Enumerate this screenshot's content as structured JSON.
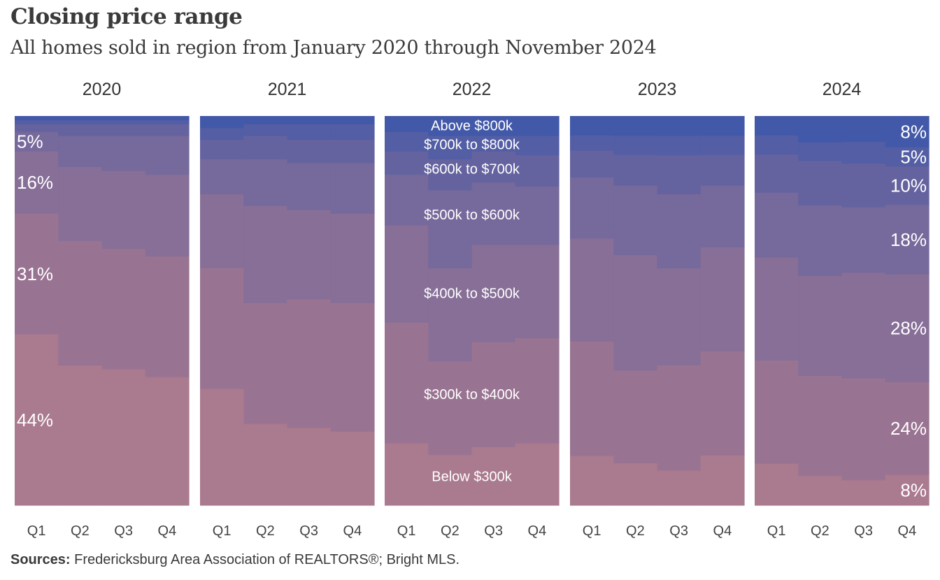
{
  "title": "Closing price range",
  "subtitle": "All homes sold in region from January 2020 through November 2024",
  "source_label": "Sources:",
  "source_text": "Fredericksburg  Area Association of REALTORS®; Bright MLS.",
  "colors": {
    "bottom": "#aa7a8e",
    "top": "#4258a8"
  },
  "chart_data": {
    "type": "area",
    "stacking": "percent",
    "ylim": [
      0,
      100
    ],
    "bands": [
      "Below $300k",
      "$300k to $400k",
      "$400k to $500k",
      "$500k to $600k",
      "$600k to $700k",
      "$700k to $800k",
      "Above $800k"
    ],
    "panels": [
      {
        "year": "2020",
        "quarters": [
          "Q1",
          "Q2",
          "Q3",
          "Q4"
        ],
        "values": [
          [
            44,
            31,
            16,
            5,
            2,
            1,
            1
          ],
          [
            36,
            32,
            19,
            8,
            3,
            1,
            1
          ],
          [
            35,
            31,
            20,
            9,
            3,
            1,
            1
          ],
          [
            33,
            31,
            21,
            10,
            3,
            1,
            1
          ]
        ],
        "labels": [
          "44%",
          "31%",
          "16%",
          "5%",
          "",
          "",
          ""
        ],
        "label_side": "left",
        "label_quarter": 0
      },
      {
        "year": "2021",
        "quarters": [
          "Q1",
          "Q2",
          "Q3",
          "Q4"
        ],
        "values": [
          [
            30,
            31,
            19,
            9,
            5,
            3,
            3
          ],
          [
            21,
            31,
            25,
            12,
            6,
            3,
            2
          ],
          [
            20,
            33,
            23,
            12,
            6,
            4,
            2
          ],
          [
            19,
            33,
            23,
            13,
            6,
            4,
            2
          ]
        ],
        "labels": [
          "",
          "",
          "",
          "",
          "",
          "",
          ""
        ],
        "label_side": "left",
        "label_quarter": 0
      },
      {
        "year": "2022",
        "quarters": [
          "Q1",
          "Q2",
          "Q3",
          "Q4"
        ],
        "values": [
          [
            16,
            31,
            25,
            13,
            6,
            5,
            4
          ],
          [
            13,
            24,
            24,
            20,
            8,
            6,
            5
          ],
          [
            15,
            27,
            25,
            16,
            8,
            4,
            5
          ],
          [
            16,
            27,
            24,
            15,
            8,
            5,
            5
          ]
        ],
        "labels": [
          "Below $300k",
          "$300k to $400k",
          "$400k to $500k",
          "$500k to $600k",
          "$600k to $700k",
          "$700k to $800k",
          "Above $800k"
        ],
        "label_side": "center",
        "label_quarter": -1
      },
      {
        "year": "2023",
        "quarters": [
          "Q1",
          "Q2",
          "Q3",
          "Q4"
        ],
        "values": [
          [
            13,
            30,
            27,
            16,
            7,
            4,
            5
          ],
          [
            11,
            24,
            30,
            18,
            8,
            5,
            5
          ],
          [
            9,
            27,
            25,
            19,
            10,
            5,
            5
          ],
          [
            13,
            27,
            27,
            16,
            8,
            5,
            5
          ]
        ],
        "labels": [
          "",
          "",
          "",
          "",
          "",
          "",
          ""
        ],
        "label_side": "left",
        "label_quarter": 0
      },
      {
        "year": "2024",
        "quarters": [
          "Q1",
          "Q2",
          "Q3",
          "Q4"
        ],
        "values": [
          [
            11,
            27,
            27,
            17,
            10,
            5,
            5
          ],
          [
            8,
            27,
            27,
            19,
            12,
            5,
            7
          ],
          [
            7,
            28,
            29,
            18,
            12,
            6,
            7
          ],
          [
            8,
            24,
            28,
            18,
            10,
            5,
            8
          ]
        ],
        "labels": [
          "8%",
          "24%",
          "28%",
          "18%",
          "10%",
          "5%",
          "8%"
        ],
        "label_side": "right",
        "label_quarter": 3
      }
    ]
  }
}
